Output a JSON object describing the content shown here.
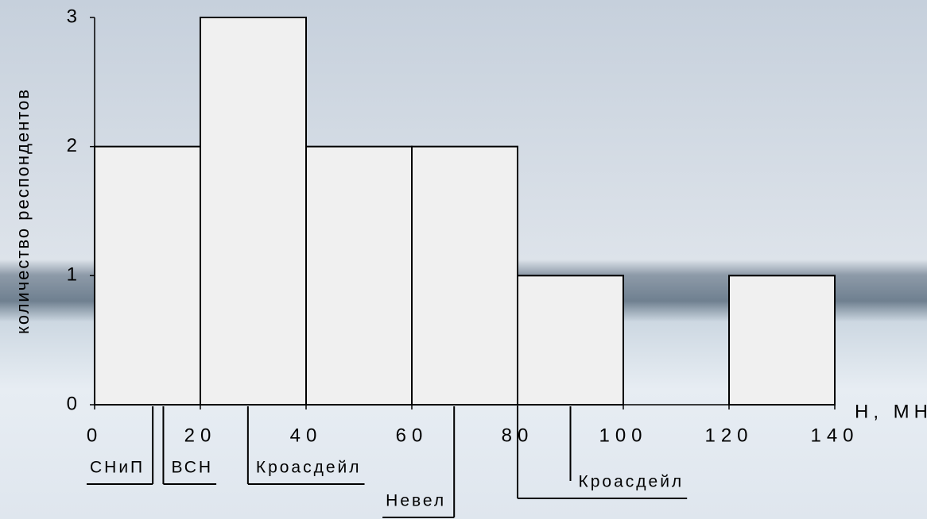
{
  "chart_data": {
    "type": "histogram",
    "x_label": "Н, МН",
    "y_label": "количество респондентов",
    "bins": [
      0,
      20,
      40,
      60,
      80,
      100,
      120,
      140
    ],
    "values": [
      2,
      3,
      2,
      2,
      1,
      0,
      1
    ],
    "color": "#f0f0f0",
    "xlim": [
      0,
      140
    ],
    "xticks": [
      0,
      20,
      40,
      60,
      80,
      100,
      120,
      140
    ],
    "ylim": [
      0,
      3
    ],
    "yticks": [
      0,
      1,
      2,
      3
    ],
    "annotations": [
      {
        "text": "СНиП",
        "x": 11
      },
      {
        "text": "ВСН",
        "x": 13
      },
      {
        "text": "Кроасдейл",
        "x": 29
      },
      {
        "text": "Невел",
        "x": 68
      },
      {
        "text": "Кроасдейл",
        "x": [
          80,
          90
        ]
      }
    ]
  }
}
